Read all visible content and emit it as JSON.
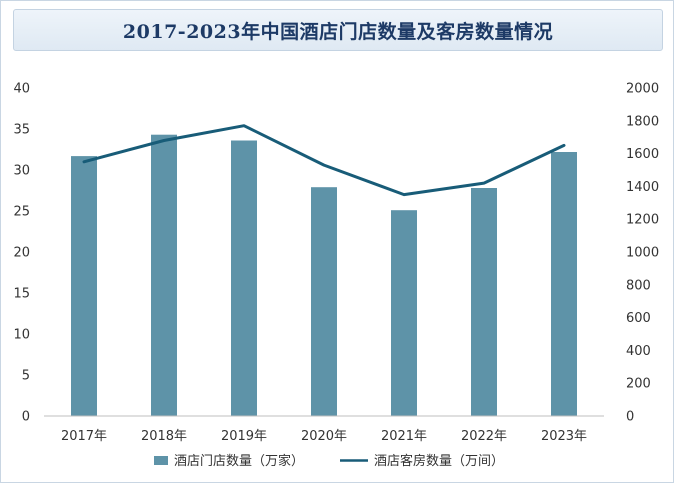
{
  "chart_data": {
    "type": "bar",
    "title": "2017-2023年中国酒店门店数量及客房数量情况",
    "categories": [
      "2017年",
      "2018年",
      "2019年",
      "2020年",
      "2021年",
      "2022年",
      "2023年"
    ],
    "series": [
      {
        "name": "酒店门店数量（万家）",
        "type": "bar",
        "axis": "left",
        "values": [
          31.7,
          34.3,
          33.6,
          27.9,
          25.1,
          27.8,
          32.2
        ]
      },
      {
        "name": "酒店客房数量（万间）",
        "type": "line",
        "axis": "right",
        "values": [
          1550,
          1680,
          1770,
          1530,
          1350,
          1420,
          1650
        ]
      }
    ],
    "y_left": {
      "lim": [
        0,
        40
      ],
      "ticks": [
        "0",
        "5",
        "10",
        "15",
        "20",
        "25",
        "30",
        "35",
        "40"
      ]
    },
    "y_right": {
      "lim": [
        0,
        2000
      ],
      "ticks": [
        "0",
        "200",
        "400",
        "600",
        "800",
        "1000",
        "1200",
        "1400",
        "1600",
        "1800",
        "2000"
      ]
    },
    "grid": false,
    "legend": "bottom",
    "colors": {
      "bar": "#5e93a8",
      "line": "#185c78",
      "title": "#1d3a66"
    }
  }
}
